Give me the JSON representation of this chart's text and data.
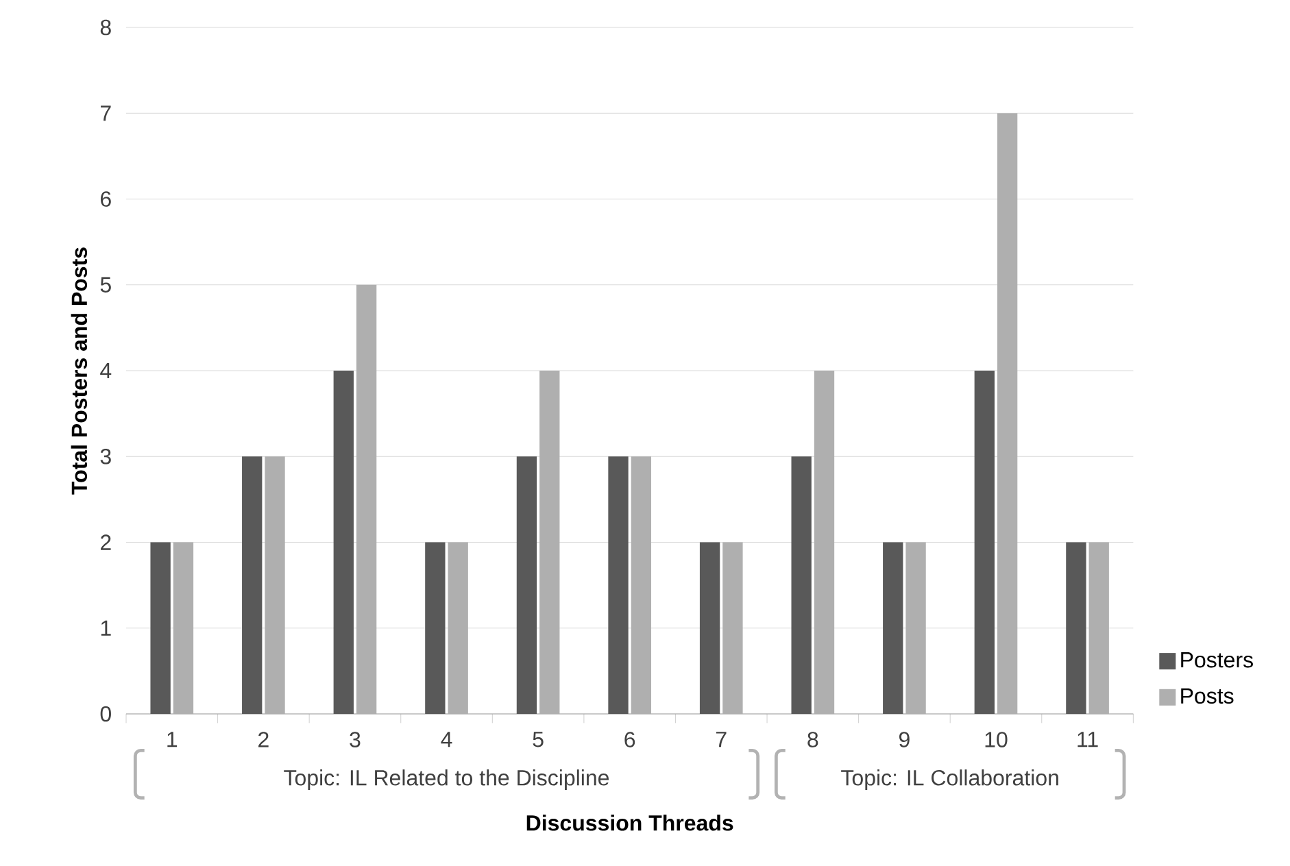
{
  "chart_data": {
    "type": "bar",
    "xlabel": "Discussion Threads",
    "ylabel": "Total Posters and Posts",
    "categories": [
      "1",
      "2",
      "3",
      "4",
      "5",
      "6",
      "7",
      "8",
      "9",
      "10",
      "11"
    ],
    "series": [
      {
        "name": "Posters",
        "color": "#595959",
        "values": [
          2,
          3,
          4,
          2,
          3,
          3,
          2,
          3,
          2,
          4,
          2
        ]
      },
      {
        "name": "Posts",
        "color": "#afafaf",
        "values": [
          2,
          3,
          5,
          2,
          4,
          3,
          2,
          4,
          2,
          7,
          2
        ]
      }
    ],
    "ylim": [
      0,
      8
    ],
    "yticks": [
      0,
      1,
      2,
      3,
      4,
      5,
      6,
      7,
      8
    ],
    "grid": "y",
    "legend": "right",
    "annotations": [
      "Topic: IL Related to the Discipline",
      "Topic: IL Collaboration"
    ]
  }
}
